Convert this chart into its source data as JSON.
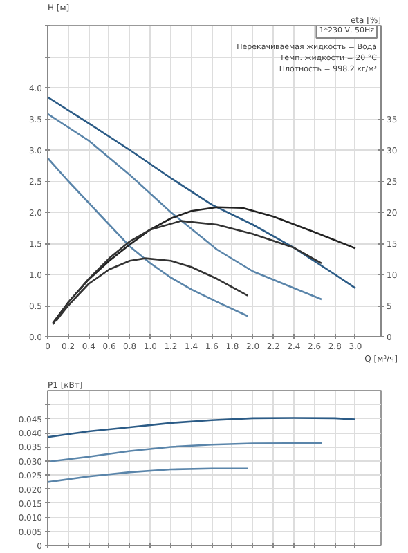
{
  "chart_data": [
    {
      "type": "line",
      "xlabel": "Q [м³/ч]",
      "ylabel": "H [м]",
      "y2label": "eta [%]",
      "grid": true,
      "marker": "none",
      "line_style": "solid",
      "xlim": [
        0,
        3.25
      ],
      "ylim": [
        0,
        5.0
      ],
      "y2lim": [
        0,
        50
      ],
      "xticks": [
        0,
        {
          "value": 0.2,
          "label": "0.2"
        },
        {
          "value": 0.4,
          "label": "0.4"
        },
        {
          "value": 0.6,
          "label": "0.6"
        },
        {
          "value": 0.8,
          "label": "0.8"
        },
        {
          "value": 1.0,
          "label": "1.0"
        },
        {
          "value": 1.2,
          "label": "1.2"
        },
        {
          "value": 1.4,
          "label": "1.4"
        },
        {
          "value": 1.6,
          "label": "1.6"
        },
        {
          "value": 1.8,
          "label": "1.8"
        },
        {
          "value": 2.0,
          "label": "2.0"
        },
        {
          "value": 2.2,
          "label": "2.2"
        },
        {
          "value": 2.4,
          "label": "2.4"
        },
        {
          "value": 2.6,
          "label": "2.6"
        },
        {
          "value": 2.8,
          "label": "2.8"
        },
        {
          "value": 3.0,
          "label": "3.0"
        }
      ],
      "yticks": [
        {
          "value": 0,
          "label": "0.0"
        },
        {
          "value": 0.5,
          "label": "0.5"
        },
        {
          "value": 1.0,
          "label": "1.0"
        },
        {
          "value": 1.5,
          "label": "1.5"
        },
        {
          "value": 2.0,
          "label": "2.0"
        },
        {
          "value": 2.5,
          "label": "2.5"
        },
        {
          "value": 3.0,
          "label": "3.0"
        },
        {
          "value": 3.5,
          "label": "3.5"
        },
        {
          "value": 4.0,
          "label": "4.0"
        },
        {
          "value": 4.5,
          "label": null
        },
        {
          "value": 5.0,
          "label": null
        }
      ],
      "y2ticks": [
        0,
        5,
        10,
        15,
        20,
        25,
        30,
        35
      ],
      "annotations": [
        "1*230 V, 50Hz",
        "Перекачиваемая жидкость = Вода",
        "Темп. жидкости = 20 °C",
        "Плотность = 998.2 кг/м³"
      ],
      "series": [
        {
          "color": "#2b5b86",
          "x": [
            0,
            0.4,
            0.8,
            1.2,
            1.6,
            2.0,
            2.4,
            2.8,
            3.0
          ],
          "values": [
            3.85,
            3.43,
            3.0,
            2.55,
            2.12,
            1.8,
            1.43,
            1.0,
            0.78
          ]
        },
        {
          "color": "#5a85aa",
          "x": [
            0,
            0.4,
            0.8,
            1.2,
            1.65,
            2.0,
            2.4,
            2.67
          ],
          "values": [
            3.58,
            3.15,
            2.6,
            2.0,
            1.4,
            1.05,
            0.78,
            0.6
          ]
        },
        {
          "color": "#5a85aa",
          "x": [
            0,
            0.2,
            0.4,
            0.6,
            0.8,
            1.0,
            1.2,
            1.4,
            1.65,
            1.95
          ],
          "values": [
            2.87,
            2.5,
            2.15,
            1.8,
            1.45,
            1.18,
            0.95,
            0.76,
            0.56,
            0.33
          ]
        },
        {
          "color": "#222222",
          "axis": "y2",
          "x": [
            0.05,
            0.2,
            0.4,
            0.6,
            0.8,
            1.0,
            1.2,
            1.4,
            1.65,
            1.9,
            2.2,
            2.6,
            3.0
          ],
          "values": [
            2.2,
            5.5,
            9.2,
            12.2,
            14.8,
            17.2,
            19.0,
            20.2,
            20.8,
            20.7,
            19.3,
            16.8,
            14.2
          ]
        },
        {
          "color": "#333333",
          "axis": "y2",
          "x": [
            0.05,
            0.2,
            0.4,
            0.6,
            0.8,
            1.0,
            1.3,
            1.65,
            2.0,
            2.4,
            2.67
          ],
          "values": [
            2.0,
            5.5,
            9.3,
            12.6,
            15.3,
            17.2,
            18.6,
            18.0,
            16.5,
            14.3,
            11.8
          ]
        },
        {
          "color": "#333333",
          "axis": "y2",
          "x": [
            0.08,
            0.2,
            0.4,
            0.6,
            0.8,
            0.95,
            1.2,
            1.4,
            1.65,
            1.95
          ],
          "values": [
            2.5,
            5.0,
            8.5,
            10.8,
            12.2,
            12.6,
            12.2,
            11.2,
            9.3,
            6.6
          ]
        }
      ]
    },
    {
      "type": "line",
      "ylabel": "P1 [кВт]",
      "grid": true,
      "marker": "none",
      "line_style": "solid",
      "tick_labels": "y",
      "xlim": [
        0,
        3.25
      ],
      "ylim": [
        0,
        0.055
      ],
      "xticks": [
        0,
        0.2,
        0.4,
        0.6,
        0.8,
        1.0,
        1.2,
        1.4,
        1.6,
        1.8,
        2.0,
        2.2,
        2.4,
        2.6,
        2.8,
        3.0
      ],
      "yticks": [
        0,
        0.005,
        {
          "value": 0.01,
          "label": "0.010"
        },
        0.015,
        {
          "value": 0.02,
          "label": "0.020"
        },
        0.025,
        {
          "value": 0.03,
          "label": "0.030"
        },
        0.035,
        {
          "value": 0.04,
          "label": "0.040"
        },
        0.045,
        {
          "value": 0.05,
          "label": null
        }
      ],
      "series": [
        {
          "color": "#2b5b86",
          "x": [
            0,
            0.4,
            0.8,
            1.2,
            1.6,
            2.0,
            2.4,
            2.8,
            3.0
          ],
          "values": [
            0.0385,
            0.0405,
            0.042,
            0.0435,
            0.0445,
            0.0452,
            0.0453,
            0.0452,
            0.0448
          ]
        },
        {
          "color": "#5a85aa",
          "x": [
            0,
            0.4,
            0.8,
            1.2,
            1.6,
            2.0,
            2.67
          ],
          "values": [
            0.0297,
            0.0315,
            0.0335,
            0.035,
            0.0358,
            0.0362,
            0.0363
          ]
        },
        {
          "color": "#5a85aa",
          "x": [
            0,
            0.4,
            0.8,
            1.2,
            1.6,
            1.95
          ],
          "values": [
            0.0225,
            0.0245,
            0.026,
            0.027,
            0.0273,
            0.0273
          ]
        }
      ]
    }
  ]
}
